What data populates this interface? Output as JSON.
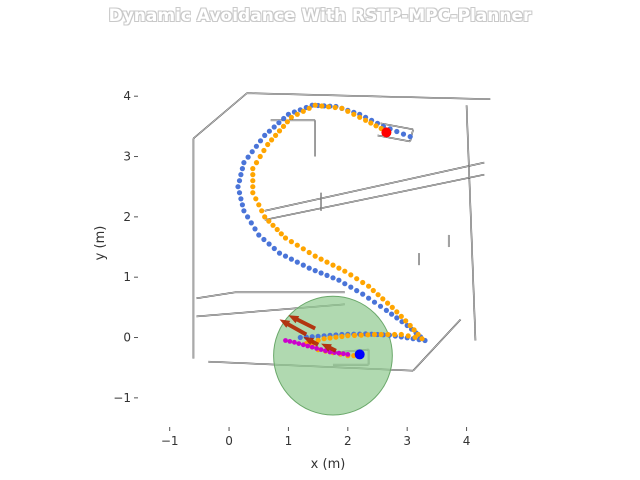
{
  "chart_data": {
    "type": "scatter",
    "title": "Dynamic Avoidance With RSTP-MPC-Planner",
    "xlabel": "x (m)",
    "ylabel": "y (m)",
    "xlim": [
      -1.5,
      4.9
    ],
    "ylim": [
      -1.45,
      4.6
    ],
    "xticks": [
      -1,
      0,
      1,
      2,
      3,
      4
    ],
    "yticks": [
      -1,
      0,
      1,
      2,
      3,
      4
    ],
    "grid": false,
    "colors": {
      "path_a": "#4a74d8",
      "path_b": "#ffa500",
      "safety_zone": "#8fc98f",
      "goal": "#ff0000",
      "robot": "#0000ff",
      "obstacle_trail": "#cc00cc",
      "obstacle_arrows": "#b22200",
      "walls": "#333333"
    },
    "series": [
      {
        "key": "path_a",
        "points": [
          [
            3.05,
            3.33
          ],
          [
            2.6,
            3.5
          ],
          [
            2.2,
            3.7
          ],
          [
            1.8,
            3.83
          ],
          [
            1.4,
            3.85
          ],
          [
            1.0,
            3.7
          ],
          [
            0.6,
            3.35
          ],
          [
            0.25,
            2.9
          ],
          [
            0.15,
            2.5
          ],
          [
            0.25,
            2.1
          ],
          [
            0.5,
            1.7
          ],
          [
            0.85,
            1.4
          ],
          [
            1.35,
            1.15
          ],
          [
            1.85,
            0.95
          ],
          [
            2.25,
            0.72
          ],
          [
            2.65,
            0.45
          ],
          [
            3.0,
            0.2
          ],
          [
            3.3,
            -0.05
          ],
          [
            3.1,
            -0.02
          ],
          [
            2.7,
            0.04
          ],
          [
            2.3,
            0.06
          ],
          [
            1.9,
            0.05
          ],
          [
            1.5,
            0.02
          ],
          [
            1.2,
            0.0
          ]
        ]
      },
      {
        "key": "path_b",
        "points": [
          [
            2.65,
            3.42
          ],
          [
            2.3,
            3.6
          ],
          [
            1.9,
            3.8
          ],
          [
            1.45,
            3.85
          ],
          [
            1.05,
            3.65
          ],
          [
            0.65,
            3.2
          ],
          [
            0.4,
            2.8
          ],
          [
            0.4,
            2.4
          ],
          [
            0.6,
            2.0
          ],
          [
            0.95,
            1.65
          ],
          [
            1.45,
            1.35
          ],
          [
            1.95,
            1.1
          ],
          [
            2.35,
            0.85
          ],
          [
            2.75,
            0.5
          ],
          [
            3.05,
            0.2
          ],
          [
            3.25,
            -0.02
          ],
          [
            2.9,
            0.05
          ],
          [
            2.45,
            0.05
          ],
          [
            2.0,
            0.03
          ],
          [
            1.6,
            -0.02
          ],
          [
            1.3,
            -0.1
          ],
          [
            1.5,
            -0.2
          ],
          [
            1.75,
            -0.25
          ],
          [
            2.0,
            -0.3
          ],
          [
            2.2,
            -0.3
          ]
        ]
      }
    ],
    "safety_zone": {
      "x": 1.75,
      "y": -0.3,
      "r": 1.0
    },
    "goal": {
      "x": 2.65,
      "y": 3.4
    },
    "robot": {
      "x": 2.2,
      "y": -0.28
    },
    "obstacle_trail": [
      [
        0.95,
        -0.05
      ],
      [
        1.1,
        -0.08
      ],
      [
        1.25,
        -0.12
      ],
      [
        1.4,
        -0.16
      ],
      [
        1.55,
        -0.2
      ],
      [
        1.7,
        -0.24
      ],
      [
        1.85,
        -0.26
      ],
      [
        2.0,
        -0.28
      ]
    ],
    "obstacle_arrows": [
      {
        "x": 1.8,
        "y": -0.22,
        "dx": -0.25,
        "dy": 0.12
      },
      {
        "x": 1.5,
        "y": -0.12,
        "dx": -0.25,
        "dy": 0.13
      },
      {
        "x": 1.3,
        "y": 0.05,
        "dx": -0.45,
        "dy": 0.25
      },
      {
        "x": 1.45,
        "y": 0.15,
        "dx": -0.45,
        "dy": 0.22
      }
    ],
    "walls": [
      [
        [
          -0.6,
          3.3
        ],
        [
          0.3,
          4.05
        ],
        [
          4.4,
          3.95
        ]
      ],
      [
        [
          0.3,
          4.05
        ],
        [
          0.3,
          4.05
        ]
      ],
      [
        [
          -0.6,
          3.3
        ],
        [
          -0.6,
          -0.35
        ]
      ],
      [
        [
          -0.35,
          -0.4
        ],
        [
          3.1,
          -0.55
        ]
      ],
      [
        [
          3.1,
          -0.55
        ],
        [
          3.9,
          0.3
        ]
      ],
      [
        [
          4.0,
          3.85
        ],
        [
          4.15,
          -0.05
        ]
      ],
      [
        [
          0.7,
          3.6
        ],
        [
          1.45,
          3.6
        ]
      ],
      [
        [
          1.45,
          3.6
        ],
        [
          1.45,
          3.0
        ]
      ],
      [
        [
          0.6,
          2.1
        ],
        [
          4.3,
          2.9
        ]
      ],
      [
        [
          0.6,
          1.95
        ],
        [
          4.3,
          2.7
        ]
      ],
      [
        [
          1.55,
          2.1
        ],
        [
          1.55,
          2.4
        ]
      ],
      [
        [
          -0.55,
          0.65
        ],
        [
          0.1,
          0.75
        ]
      ],
      [
        [
          0.1,
          0.75
        ],
        [
          1.95,
          0.75
        ]
      ],
      [
        [
          -0.55,
          0.35
        ],
        [
          1.95,
          0.55
        ]
      ],
      [
        [
          2.55,
          3.55
        ],
        [
          3.1,
          3.45
        ]
      ],
      [
        [
          3.1,
          3.45
        ],
        [
          3.05,
          3.25
        ]
      ],
      [
        [
          3.05,
          3.25
        ],
        [
          2.5,
          3.35
        ]
      ],
      [
        [
          1.75,
          -0.25
        ],
        [
          2.35,
          -0.2
        ]
      ],
      [
        [
          2.35,
          -0.2
        ],
        [
          2.35,
          -0.45
        ]
      ],
      [
        [
          2.35,
          -0.45
        ],
        [
          1.75,
          -0.45
        ]
      ],
      [
        [
          3.2,
          1.4
        ],
        [
          3.2,
          1.2
        ]
      ],
      [
        [
          3.7,
          1.5
        ],
        [
          3.7,
          1.7
        ]
      ]
    ]
  }
}
